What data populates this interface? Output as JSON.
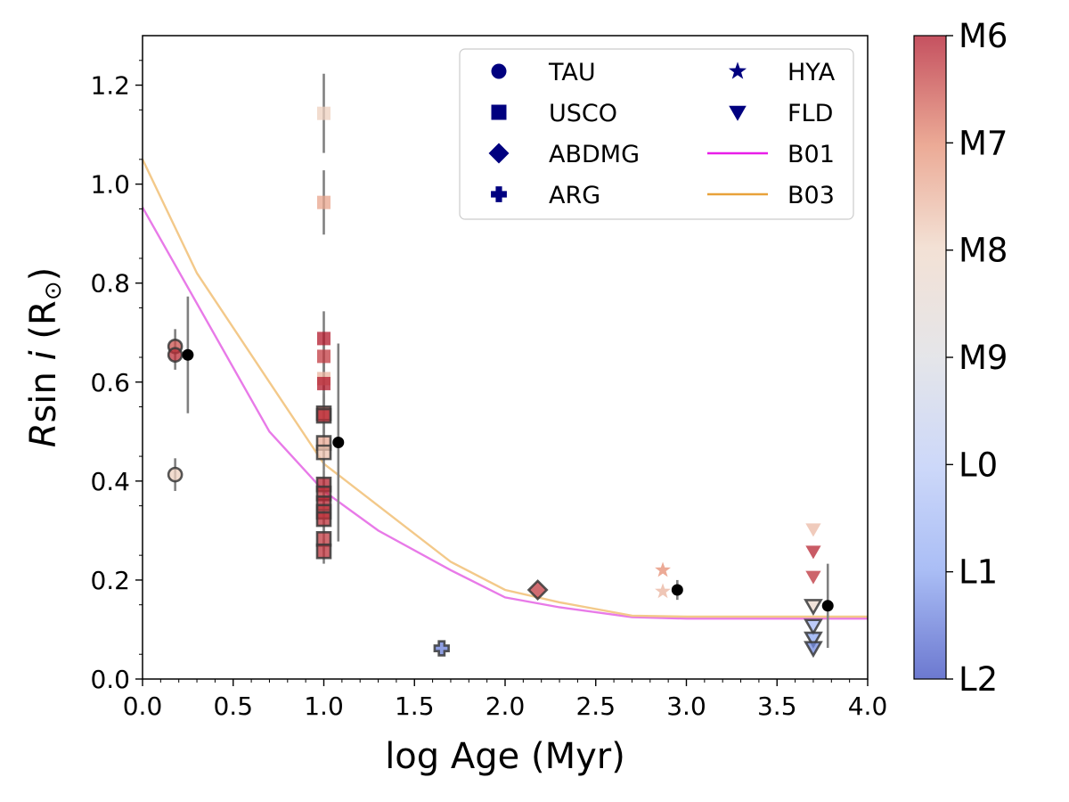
{
  "chart_data": {
    "type": "scatter",
    "xlabel": "log Age (Myr)",
    "ylabel": "Rsin i (R⊙)",
    "xlim": [
      0.0,
      4.0
    ],
    "ylim": [
      0.0,
      1.3
    ],
    "x_ticks": [
      "0.0",
      "0.5",
      "1.0",
      "1.5",
      "2.0",
      "2.5",
      "3.0",
      "3.5",
      "4.0"
    ],
    "y_ticks": [
      "0.0",
      "0.2",
      "0.4",
      "0.6",
      "0.8",
      "1.0",
      "1.2"
    ],
    "grid": false,
    "legend_position": "top-right",
    "legend": [
      {
        "label": "TAU",
        "marker": "circle"
      },
      {
        "label": "USCO",
        "marker": "square"
      },
      {
        "label": "ABDMG",
        "marker": "diamond"
      },
      {
        "label": "ARG",
        "marker": "plus"
      },
      {
        "label": "HYA",
        "marker": "star"
      },
      {
        "label": "FLD",
        "marker": "triangle-down"
      },
      {
        "label": "B01",
        "line": "#e81ee8"
      },
      {
        "label": "B03",
        "line": "#e8a23a"
      }
    ],
    "colorbar": {
      "labels": [
        "M6",
        "M7",
        "M8",
        "M9",
        "L0",
        "L1",
        "L2"
      ],
      "colors": [
        "#b2182b",
        "#e58e73",
        "#efd7c7",
        "#dcdde2",
        "#bccbf7",
        "#8ea8f2",
        "#5e74d2"
      ]
    },
    "series": [
      {
        "name": "TAU",
        "marker": "circle",
        "points": [
          {
            "x": 0.18,
            "y": 0.672,
            "spt": 0.5,
            "err": 0.035,
            "edge": true
          },
          {
            "x": 0.18,
            "y": 0.655,
            "spt": 0.2,
            "err": 0.03,
            "edge": true
          },
          {
            "x": 0.18,
            "y": 0.413,
            "spt": 1.9,
            "err": 0.033,
            "edge": true
          }
        ]
      },
      {
        "name": "USCO",
        "marker": "square",
        "points": [
          {
            "x": 1.0,
            "y": 1.143,
            "spt": 1.9,
            "err": 0.08,
            "edge": false
          },
          {
            "x": 1.0,
            "y": 0.963,
            "spt": 1.3,
            "err": 0.065,
            "edge": false
          },
          {
            "x": 1.0,
            "y": 0.688,
            "spt": 0.0,
            "err": 0.055,
            "edge": false
          },
          {
            "x": 1.0,
            "y": 0.652,
            "spt": 0.3,
            "err": 0.05,
            "edge": false
          },
          {
            "x": 1.0,
            "y": 0.607,
            "spt": 1.5,
            "err": 0.045,
            "edge": false
          },
          {
            "x": 1.0,
            "y": 0.597,
            "spt": 0.0,
            "err": 0.045,
            "edge": false
          },
          {
            "x": 1.0,
            "y": 0.537,
            "spt": 0.5,
            "err": 0.04,
            "edge": true
          },
          {
            "x": 1.0,
            "y": 0.532,
            "spt": 0.2,
            "err": 0.04,
            "edge": true
          },
          {
            "x": 1.0,
            "y": 0.477,
            "spt": 1.4,
            "err": 0.035,
            "edge": true
          },
          {
            "x": 1.0,
            "y": 0.458,
            "spt": 1.7,
            "err": 0.035,
            "edge": true
          },
          {
            "x": 1.0,
            "y": 0.393,
            "spt": 0.1,
            "err": 0.03,
            "edge": true
          },
          {
            "x": 1.0,
            "y": 0.375,
            "spt": 0.2,
            "err": 0.03,
            "edge": true
          },
          {
            "x": 1.0,
            "y": 0.355,
            "spt": 0.1,
            "err": 0.03,
            "edge": true
          },
          {
            "x": 1.0,
            "y": 0.338,
            "spt": 0.3,
            "err": 0.03,
            "edge": true
          },
          {
            "x": 1.0,
            "y": 0.323,
            "spt": 0.2,
            "err": 0.025,
            "edge": true
          },
          {
            "x": 1.0,
            "y": 0.283,
            "spt": 0.3,
            "err": 0.025,
            "edge": true
          },
          {
            "x": 1.0,
            "y": 0.258,
            "spt": 0.2,
            "err": 0.025,
            "edge": true
          }
        ]
      },
      {
        "name": "ABDMG",
        "marker": "diamond",
        "points": [
          {
            "x": 2.18,
            "y": 0.18,
            "spt": 0.3,
            "err": 0.0,
            "edge": true
          }
        ]
      },
      {
        "name": "ARG",
        "marker": "plus",
        "points": [
          {
            "x": 1.65,
            "y": 0.062,
            "spt": 5.8,
            "err": 0.0,
            "edge": true
          }
        ]
      },
      {
        "name": "HYA",
        "marker": "star",
        "points": [
          {
            "x": 2.87,
            "y": 0.22,
            "spt": 1.0,
            "err": 0.0,
            "edge": false
          },
          {
            "x": 2.87,
            "y": 0.177,
            "spt": 1.5,
            "err": 0.0,
            "edge": false
          }
        ]
      },
      {
        "name": "FLD",
        "marker": "triangle-down",
        "points": [
          {
            "x": 3.7,
            "y": 0.303,
            "spt": 1.6,
            "err": 0.0,
            "edge": false
          },
          {
            "x": 3.7,
            "y": 0.258,
            "spt": 0.1,
            "err": 0.0,
            "edge": false
          },
          {
            "x": 3.7,
            "y": 0.207,
            "spt": 0.2,
            "err": 0.0,
            "edge": false
          },
          {
            "x": 3.7,
            "y": 0.148,
            "spt": 2.2,
            "err": 0.0,
            "edge": true
          },
          {
            "x": 3.7,
            "y": 0.108,
            "spt": 4.5,
            "err": 0.0,
            "edge": true
          },
          {
            "x": 3.7,
            "y": 0.082,
            "spt": 5.0,
            "err": 0.0,
            "edge": true
          },
          {
            "x": 3.7,
            "y": 0.063,
            "spt": 5.6,
            "err": 0.0,
            "edge": true
          }
        ]
      },
      {
        "name": "mean",
        "marker": "circle",
        "color": "#000000",
        "points": [
          {
            "x": 0.25,
            "y": 0.655,
            "err": 0.118
          },
          {
            "x": 1.08,
            "y": 0.478,
            "err": 0.2
          },
          {
            "x": 2.95,
            "y": 0.18,
            "err": 0.02
          },
          {
            "x": 3.78,
            "y": 0.148,
            "err": 0.085
          }
        ]
      }
    ],
    "lines": [
      {
        "name": "B01",
        "color": "#e87ae8",
        "x": [
          0.0,
          0.7,
          1.0,
          1.3,
          1.7,
          2.0,
          2.3,
          2.7,
          3.0,
          4.0
        ],
        "y": [
          0.953,
          0.5,
          0.38,
          0.3,
          0.22,
          0.165,
          0.145,
          0.125,
          0.122,
          0.122
        ]
      },
      {
        "name": "B03",
        "color": "#f3c98a",
        "x": [
          0.0,
          0.3,
          0.7,
          1.0,
          1.3,
          1.7,
          2.0,
          2.3,
          2.7,
          3.0,
          4.0
        ],
        "y": [
          1.05,
          0.82,
          0.6,
          0.435,
          0.35,
          0.237,
          0.18,
          0.155,
          0.128,
          0.126,
          0.126
        ]
      }
    ]
  }
}
